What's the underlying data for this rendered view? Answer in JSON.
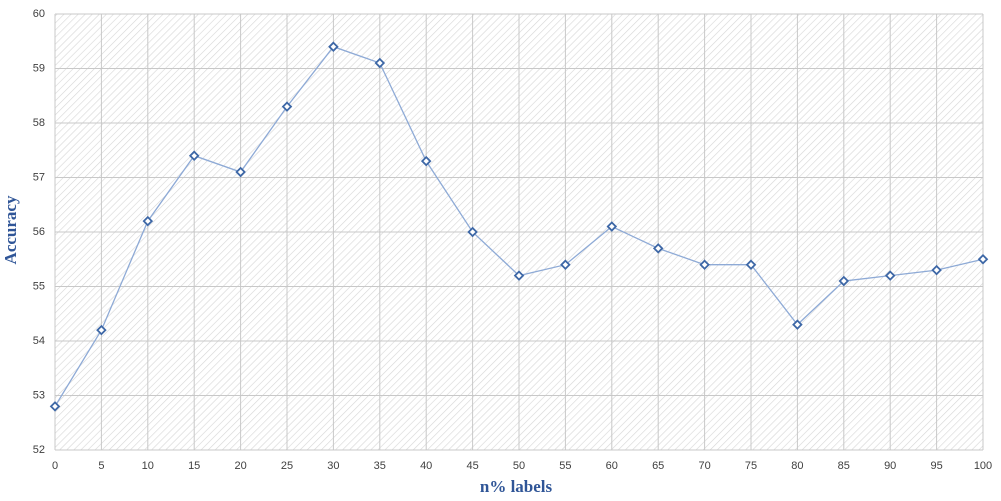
{
  "chart_data": {
    "type": "line",
    "x_label": "n% labels",
    "y_label": "Accuracy",
    "x": [
      0,
      5,
      10,
      15,
      20,
      25,
      30,
      35,
      40,
      45,
      50,
      55,
      60,
      65,
      70,
      75,
      80,
      85,
      90,
      95,
      100
    ],
    "values": [
      52.8,
      54.2,
      56.2,
      57.4,
      57.1,
      58.3,
      59.4,
      59.1,
      57.3,
      56.0,
      55.2,
      55.4,
      56.1,
      55.7,
      55.4,
      55.4,
      54.3,
      55.1,
      55.2,
      55.3,
      55.5
    ],
    "color": "#8eaad6",
    "marker_color": "#3d67a6",
    "xlim": [
      0,
      100
    ],
    "xticks": [
      0,
      5,
      10,
      15,
      20,
      25,
      30,
      35,
      40,
      45,
      50,
      55,
      60,
      65,
      70,
      75,
      80,
      85,
      90,
      95,
      100
    ],
    "ylim": [
      52,
      60
    ],
    "yticks": [
      52,
      53,
      54,
      55,
      56,
      57,
      58,
      59,
      60
    ],
    "grid": true
  }
}
